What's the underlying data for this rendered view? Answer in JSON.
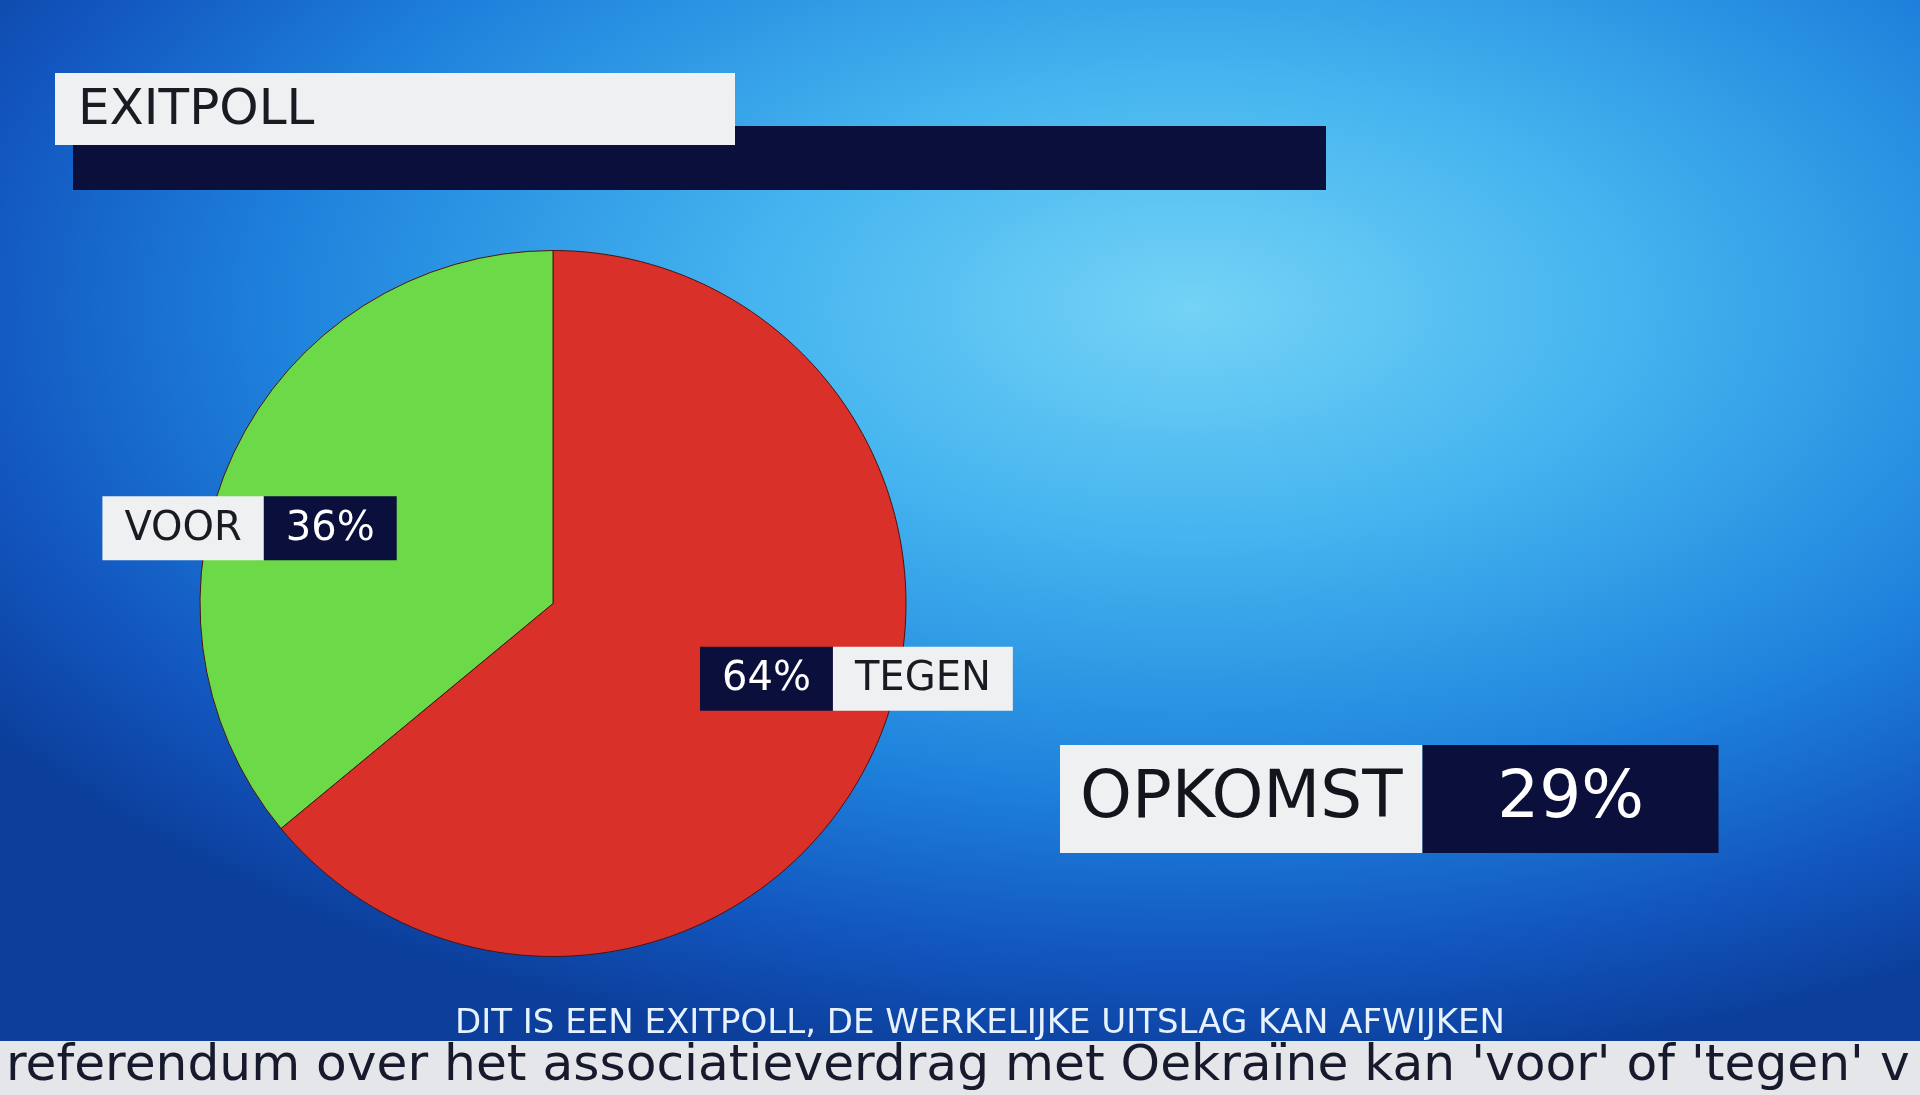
{
  "chart_data": {
    "type": "pie",
    "title": "EXITPOLL",
    "categories": [
      "TEGEN",
      "VOOR"
    ],
    "values": [
      64,
      36
    ],
    "colors": [
      "#d9302a",
      "#6cd949"
    ],
    "value_labels": [
      "64%",
      "36%"
    ],
    "annotations": [
      "OPKOMST",
      "29%",
      "DIT IS EEN EXITPOLL, DE WERKELIJKE UITSLAG KAN AFWIJKEN",
      "referendum over het associatieverdrag met Oekraïne kan 'voor' of 'tegen' v"
    ]
  }
}
